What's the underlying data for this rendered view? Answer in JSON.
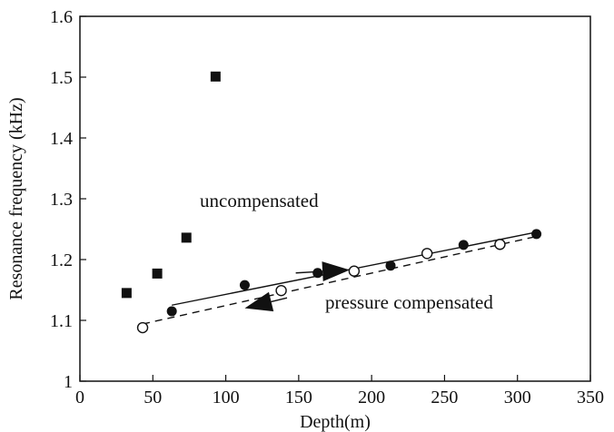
{
  "chart_data": {
    "type": "scatter",
    "title": "",
    "xlabel": "Depth(m)",
    "ylabel": "Resonance frequency (kHz)",
    "xlim": [
      0,
      350
    ],
    "ylim": [
      1.0,
      1.6
    ],
    "x_ticks": [
      "0",
      "50",
      "100",
      "150",
      "200",
      "250",
      "300",
      "350"
    ],
    "y_ticks": [
      "1",
      "1.1",
      "1.2",
      "1.3",
      "1.4",
      "1.5",
      "1.6"
    ],
    "grid": false,
    "legend": "none",
    "series": [
      {
        "marker": "filled-square",
        "points": [
          [
            32,
            1.145
          ],
          [
            53,
            1.177
          ],
          [
            73,
            1.236
          ],
          [
            93,
            1.501
          ]
        ]
      },
      {
        "marker": "filled-circle",
        "points": [
          [
            63,
            1.115
          ],
          [
            113,
            1.158
          ],
          [
            163,
            1.178
          ],
          [
            213,
            1.19
          ],
          [
            263,
            1.224
          ],
          [
            313,
            1.242
          ]
        ]
      },
      {
        "marker": "open-circle",
        "points": [
          [
            43,
            1.088
          ],
          [
            138,
            1.149
          ],
          [
            188,
            1.181
          ],
          [
            238,
            1.21
          ],
          [
            288,
            1.225
          ]
        ]
      }
    ],
    "fit_lines": [
      {
        "style": "solid",
        "from": [
          63,
          1.125
        ],
        "to": [
          313,
          1.245
        ]
      },
      {
        "style": "dashed",
        "from": [
          43,
          1.094
        ],
        "to": [
          313,
          1.238
        ]
      }
    ],
    "arrows": [
      {
        "direction": "increasing-depth",
        "from": [
          148,
          1.178
        ],
        "to": [
          185,
          1.183
        ]
      },
      {
        "direction": "decreasing-depth",
        "from": [
          142,
          1.137
        ],
        "to": [
          113,
          1.12
        ]
      }
    ],
    "annotations": [
      {
        "text": "uncompensated",
        "at": [
          137,
          1.29
        ]
      },
      {
        "text": "pressure compensated",
        "at": [
          208,
          1.12
        ]
      }
    ]
  }
}
